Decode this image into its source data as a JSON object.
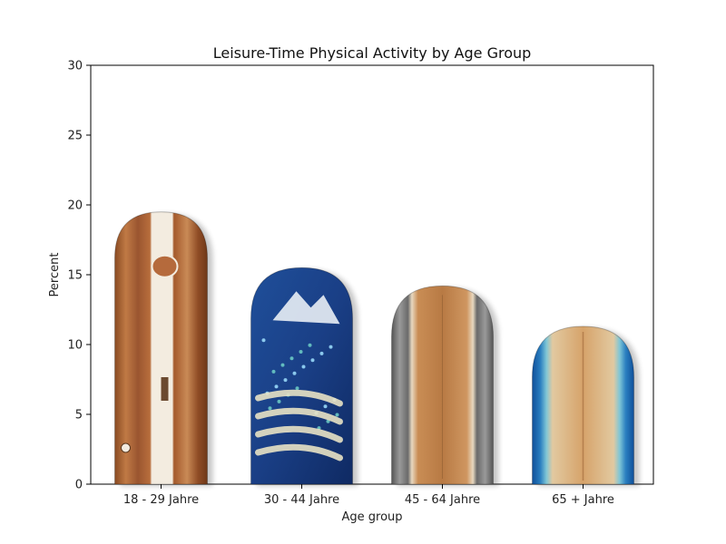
{
  "chart_data": {
    "type": "bar",
    "title": "Leisure-Time Physical Activity by Age Group",
    "xlabel": "Age group",
    "ylabel": "Percent",
    "categories": [
      "18 - 29 Jahre",
      "30 - 44 Jahre",
      "45 - 64 Jahre",
      "65 + Jahre"
    ],
    "values": [
      19.5,
      15.5,
      14.2,
      11.3
    ],
    "ylim": [
      0,
      30
    ],
    "yticks": [
      "0",
      "5",
      "10",
      "15",
      "20",
      "25",
      "30"
    ],
    "grid": false,
    "bar_style": [
      "wood-stripe surfboard",
      "blue starry surfboard",
      "wood with grey rails surfboard",
      "wood with blue rails surfboard"
    ]
  }
}
